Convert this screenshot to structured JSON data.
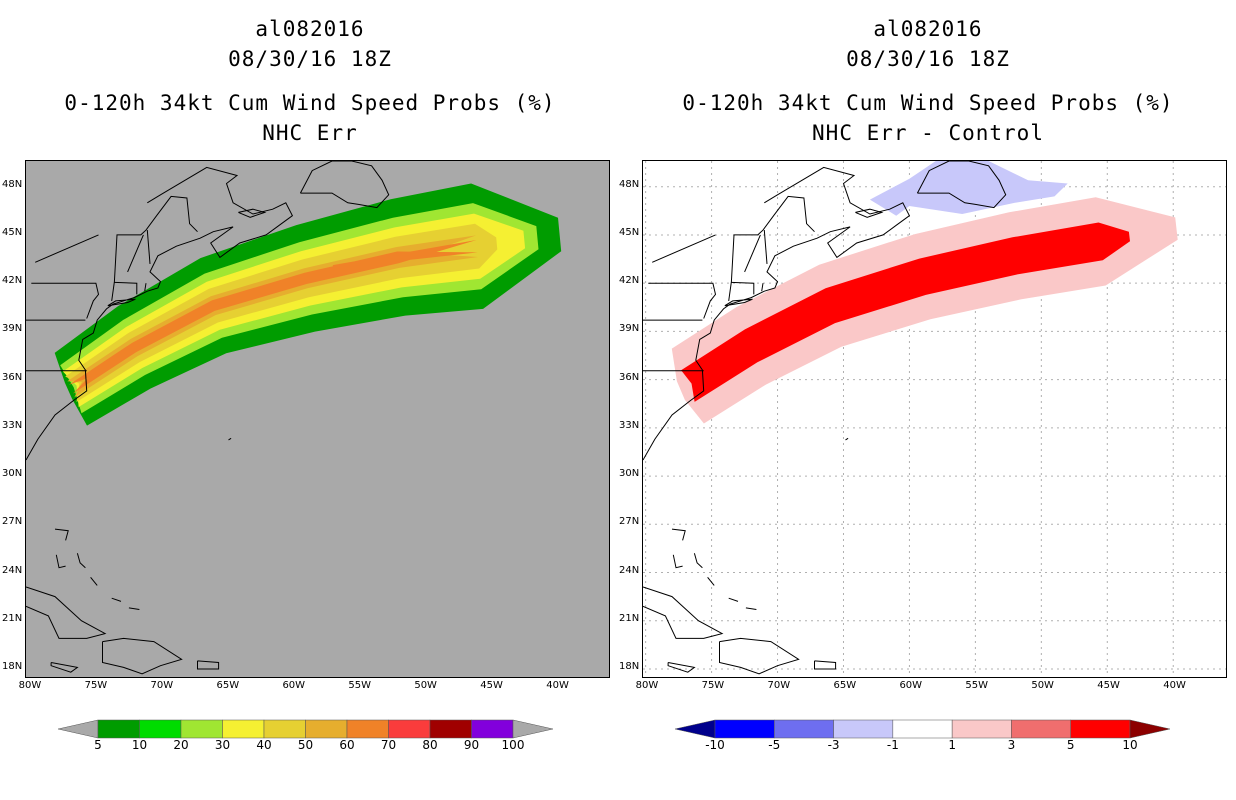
{
  "panels": [
    {
      "id": "left",
      "storm_id": "al082016",
      "datetime": "08/30/16 18Z",
      "product": "0-120h 34kt Cum Wind Speed Probs (%)",
      "subtitle": "NHC Err",
      "background_color": "#a9a9a9",
      "legend": {
        "colors": [
          "#009c00",
          "#00dc00",
          "#a0e632",
          "#f5f032",
          "#e6d032",
          "#e6ae2e",
          "#f08228",
          "#fa3c3c",
          "#a00000",
          "#8200dc"
        ],
        "labels": [
          "5",
          "10",
          "20",
          "30",
          "40",
          "50",
          "60",
          "70",
          "80",
          "90",
          "100"
        ],
        "extend_color": "#a9a9a9"
      }
    },
    {
      "id": "right",
      "storm_id": "al082016",
      "datetime": "08/30/16 18Z",
      "product": "0-120h 34kt Cum Wind Speed Probs (%)",
      "subtitle": "NHC Err - Control",
      "background_color": "#ffffff",
      "legend": {
        "colors": [
          "#0000ff",
          "#6e6ef0",
          "#c8c8fa",
          "#ffffff",
          "#fac8c8",
          "#f06e6e",
          "#ff0000"
        ],
        "labels": [
          "-10",
          "-5",
          "-3",
          "-1",
          "1",
          "3",
          "5",
          "10"
        ],
        "extend_low_color": "#00008c",
        "extend_high_color": "#8c0000"
      }
    }
  ],
  "axes": {
    "lon_ticks": [
      "80W",
      "75W",
      "70W",
      "65W",
      "60W",
      "55W",
      "50W",
      "45W",
      "40W"
    ],
    "lat_ticks": [
      "48N",
      "45N",
      "42N",
      "39N",
      "36N",
      "33N",
      "30N",
      "27N",
      "24N",
      "21N",
      "18N"
    ],
    "lon_range": [
      -80.2,
      -36
    ],
    "lat_range": [
      17.5,
      49.6
    ]
  },
  "left_field": {
    "description_levels": [
      5,
      10,
      20,
      30,
      40,
      50,
      60
    ],
    "colors": [
      "#009c00",
      "#00dc00",
      "#a0e632",
      "#f5f032",
      "#e6d032",
      "#e6ae2e",
      "#f08228"
    ]
  },
  "right_field": {
    "levels": [
      1,
      3,
      5,
      -1
    ],
    "colors": [
      "#fac8c8",
      "#f06e6e",
      "#ff0000",
      "#c8c8fa"
    ]
  }
}
